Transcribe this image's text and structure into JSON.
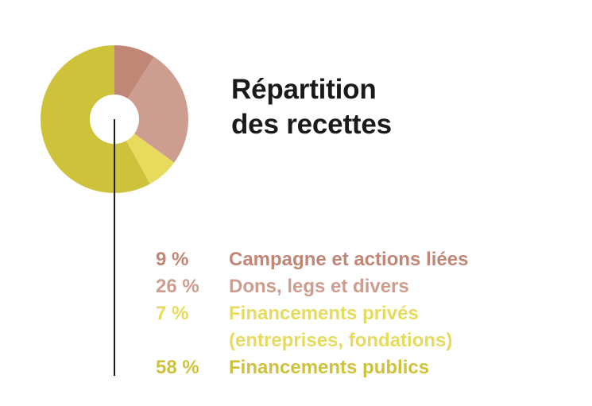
{
  "title": {
    "line1": "Répartition",
    "line2": "des recettes"
  },
  "chart_data": {
    "type": "pie",
    "title": "Répartition des recettes",
    "categories": [
      "Campagne et actions liées",
      "Dons, legs et divers",
      "Financements privés (entreprises, fondations)",
      "Financements publics"
    ],
    "values": [
      9,
      26,
      7,
      58
    ],
    "colors": [
      "#c08676",
      "#cd9e90",
      "#e6db5c",
      "#cfc23b"
    ],
    "unit": "%"
  },
  "legend": [
    {
      "value": "9 %",
      "label": "Campagne et actions liées",
      "color": "#c08676"
    },
    {
      "value": "26 %",
      "label": "Dons, legs et divers",
      "color": "#cd9e90"
    },
    {
      "value": "7 %",
      "label": "Financements privés",
      "label2": "(entreprises, fondations)",
      "color": "#e6db5c"
    },
    {
      "value": "58 %",
      "label": "Financements publics",
      "color": "#cfc23b"
    }
  ]
}
